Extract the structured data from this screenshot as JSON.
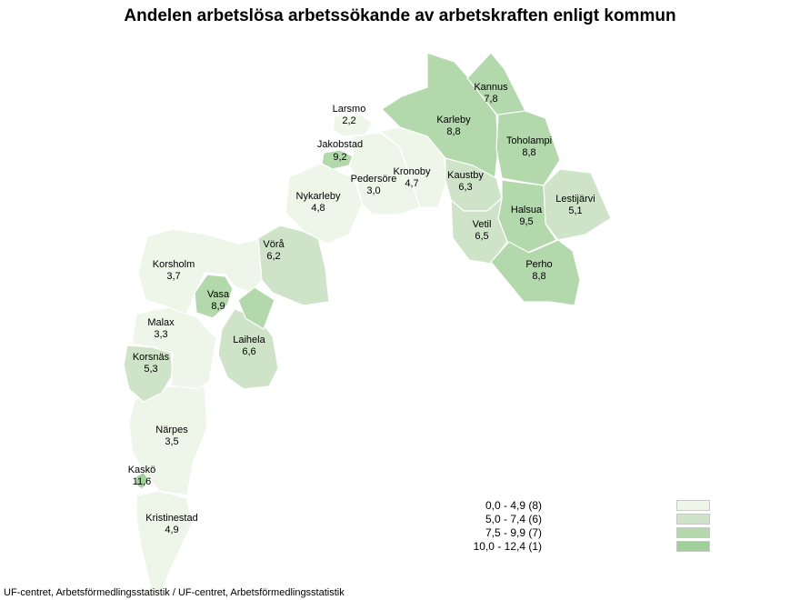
{
  "title": "Andelen arbetslösa arbetssökande av arbetskraften enligt kommun",
  "source": "UF-centret, Arbetsförmedlingsstatistik / UF-centret, Arbetsförmedlingsstatistik",
  "colors": {
    "class_1": "#eef6e9",
    "class_2": "#cfe3c8",
    "class_3": "#b3d8ac",
    "class_4": "#a0d09a",
    "border": "#ffffff"
  },
  "legend": [
    {
      "label": "0,0 - 4,9 (8)",
      "color": "#eef6e9"
    },
    {
      "label": "5,0 - 7,4 (6)",
      "color": "#cfe3c8"
    },
    {
      "label": "7,5 - 9,9 (7)",
      "color": "#b3d8ac"
    },
    {
      "label": "10,0 - 12,4 (1)",
      "color": "#a0d09a"
    }
  ],
  "municipalities": [
    {
      "name": "Kannus",
      "value": "7,8",
      "color": "#b3d8ac"
    },
    {
      "name": "Larsmo",
      "value": "2,2",
      "color": "#eef6e9"
    },
    {
      "name": "Karleby",
      "value": "8,8",
      "color": "#b3d8ac"
    },
    {
      "name": "Toholampi",
      "value": "8,8",
      "color": "#b3d8ac"
    },
    {
      "name": "Jakobstad",
      "value": "9,2",
      "color": "#b3d8ac"
    },
    {
      "name": "Kronoby",
      "value": "4,7",
      "color": "#eef6e9"
    },
    {
      "name": "Kaustby",
      "value": "6,3",
      "color": "#cfe3c8"
    },
    {
      "name": "Pedersöre",
      "value": "3,0",
      "color": "#eef6e9"
    },
    {
      "name": "Lestijärvi",
      "value": "5,1",
      "color": "#cfe3c8"
    },
    {
      "name": "Nykarleby",
      "value": "4,8",
      "color": "#eef6e9"
    },
    {
      "name": "Halsua",
      "value": "9,5",
      "color": "#b3d8ac"
    },
    {
      "name": "Vetil",
      "value": "6,5",
      "color": "#cfe3c8"
    },
    {
      "name": "Vörå",
      "value": "6,2",
      "color": "#cfe3c8"
    },
    {
      "name": "Perho",
      "value": "8,8",
      "color": "#b3d8ac"
    },
    {
      "name": "Korsholm",
      "value": "3,7",
      "color": "#eef6e9"
    },
    {
      "name": "Vasa",
      "value": "8,9",
      "color": "#b3d8ac"
    },
    {
      "name": "Malax",
      "value": "3,3",
      "color": "#eef6e9"
    },
    {
      "name": "Laihela",
      "value": "6,6",
      "color": "#cfe3c8"
    },
    {
      "name": "Korsnäs",
      "value": "5,3",
      "color": "#cfe3c8"
    },
    {
      "name": "Närpes",
      "value": "3,5",
      "color": "#eef6e9"
    },
    {
      "name": "Kaskö",
      "value": "11,6",
      "color": "#a0d09a"
    },
    {
      "name": "Kristinestad",
      "value": "4,9",
      "color": "#eef6e9"
    }
  ]
}
